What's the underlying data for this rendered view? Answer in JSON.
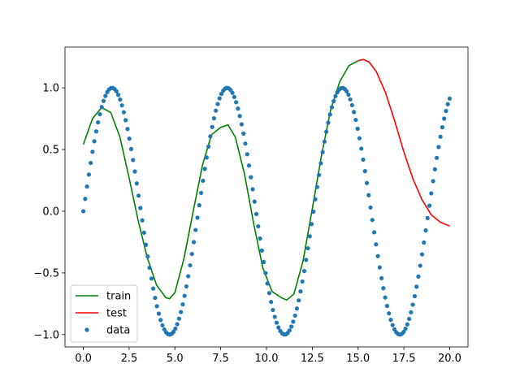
{
  "chart_data": {
    "type": "line",
    "title": "",
    "xlabel": "",
    "ylabel": "",
    "xlim": [
      -1.0,
      21.0
    ],
    "ylim": [
      -1.1,
      1.33
    ],
    "x_ticks": [
      0.0,
      2.5,
      5.0,
      7.5,
      10.0,
      12.5,
      15.0,
      17.5,
      20.0
    ],
    "x_tick_labels": [
      "0.0",
      "2.5",
      "5.0",
      "7.5",
      "10.0",
      "12.5",
      "15.0",
      "17.5",
      "20.0"
    ],
    "y_ticks": [
      -1.0,
      -0.5,
      0.0,
      0.5,
      1.0
    ],
    "y_tick_labels": [
      "−1.0",
      "−0.5",
      "0.0",
      "0.5",
      "1.0"
    ],
    "grid": false,
    "legend_position": "lower-left",
    "series": [
      {
        "name": "train",
        "kind": "line",
        "color": "#008000",
        "x": [
          0.0,
          0.5,
          1.0,
          1.5,
          2.0,
          2.5,
          3.0,
          3.5,
          4.0,
          4.5,
          4.7,
          5.0,
          5.5,
          6.0,
          6.5,
          7.0,
          7.5,
          7.9,
          8.3,
          8.8,
          9.3,
          9.8,
          10.3,
          10.8,
          11.1,
          11.5,
          12.0,
          12.5,
          13.0,
          13.5,
          14.0,
          14.5,
          15.0
        ],
        "y": [
          0.54,
          0.75,
          0.84,
          0.8,
          0.6,
          0.27,
          -0.08,
          -0.38,
          -0.6,
          -0.7,
          -0.71,
          -0.66,
          -0.38,
          0.0,
          0.37,
          0.62,
          0.68,
          0.7,
          0.6,
          0.3,
          -0.1,
          -0.46,
          -0.65,
          -0.7,
          -0.72,
          -0.67,
          -0.4,
          0.02,
          0.45,
          0.82,
          1.05,
          1.18,
          1.22
        ]
      },
      {
        "name": "test",
        "kind": "line",
        "color": "#ff0000",
        "x": [
          15.0,
          15.3,
          15.6,
          16.0,
          16.5,
          17.0,
          17.5,
          18.0,
          18.5,
          19.0,
          19.5,
          20.0
        ],
        "y": [
          1.22,
          1.23,
          1.21,
          1.13,
          0.96,
          0.73,
          0.48,
          0.26,
          0.09,
          -0.03,
          -0.09,
          -0.12
        ]
      },
      {
        "name": "data",
        "kind": "scatter",
        "color": "#1f77b4",
        "function": "sin(x)",
        "x_start": 0.0,
        "x_end": 20.0,
        "points": 200
      }
    ]
  }
}
